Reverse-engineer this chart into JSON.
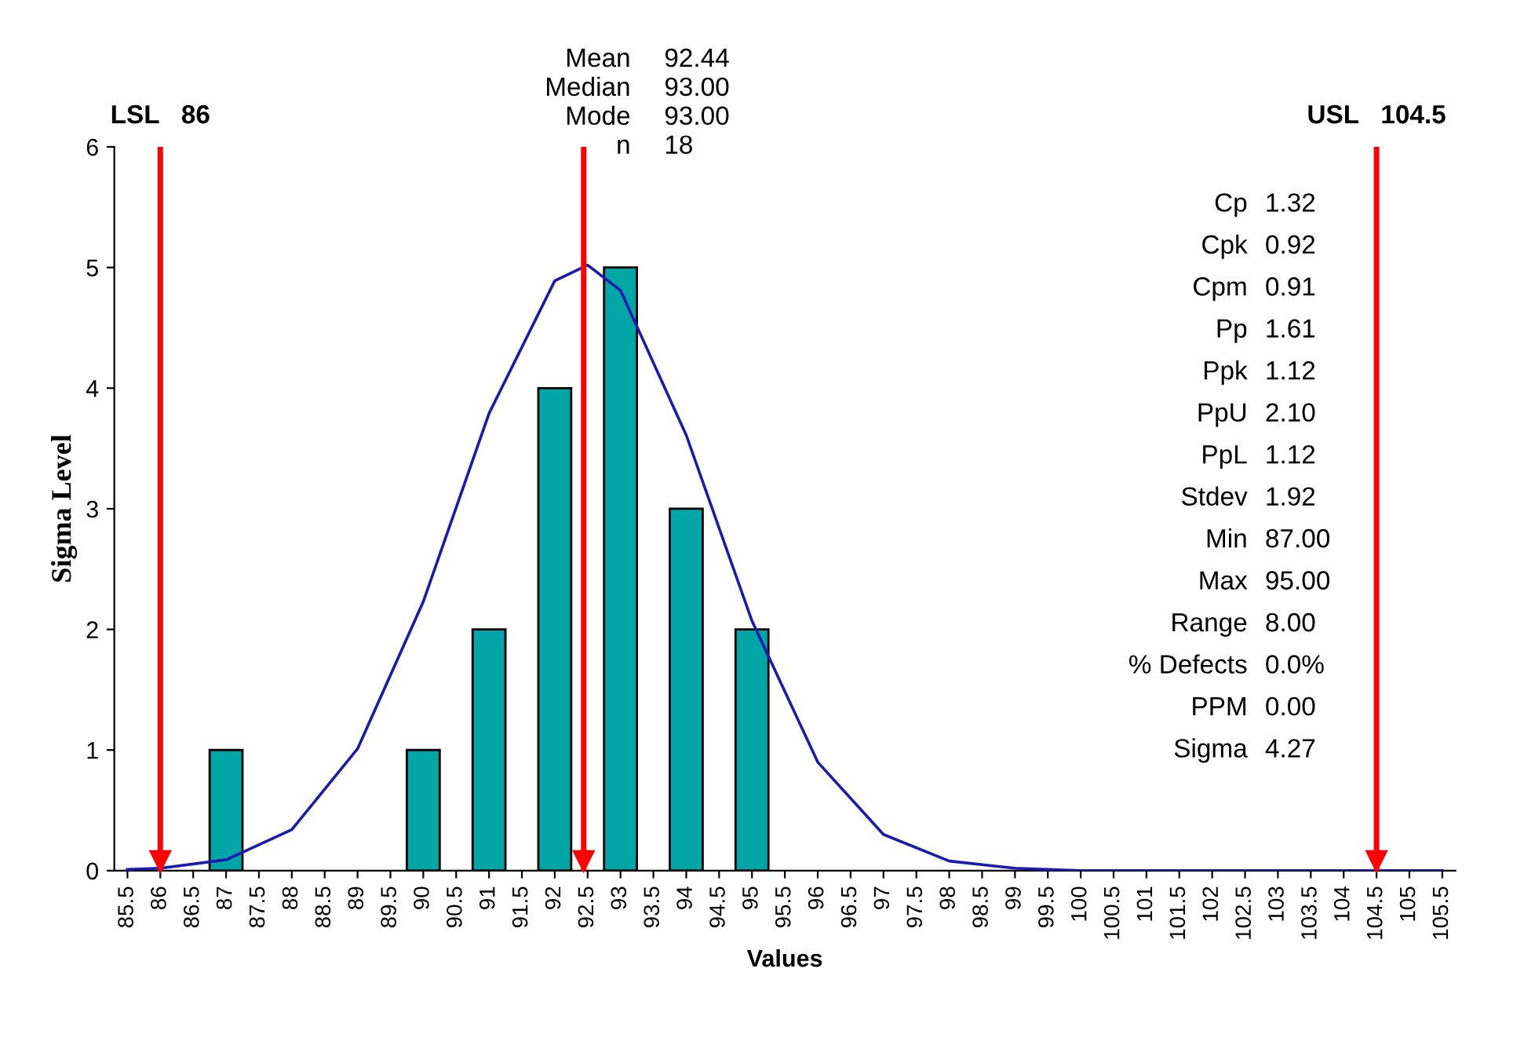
{
  "chart_data": {
    "type": "bar",
    "xlabel": "Values",
    "ylabel": "Sigma Level",
    "series": [
      {
        "x": [
          87,
          90,
          91,
          92,
          93,
          94,
          95
        ],
        "values": [
          1,
          1,
          2,
          4,
          5,
          3,
          2
        ],
        "color": "#00a6a6"
      },
      {
        "type": "line",
        "x": [
          85.5,
          86,
          87,
          88,
          89,
          90,
          91,
          92,
          92.5,
          93,
          94,
          95,
          96,
          97,
          98,
          99,
          100,
          101,
          105.5
        ],
        "values": [
          0.01,
          0.02,
          0.09,
          0.34,
          1.01,
          2.23,
          3.79,
          4.89,
          5.02,
          4.81,
          3.61,
          2.07,
          0.9,
          0.3,
          0.08,
          0.02,
          0,
          0,
          0
        ],
        "color": "#1a1ab0"
      }
    ],
    "xlim": [
      85.3,
      105.7
    ],
    "xticks": [
      85.5,
      86,
      86.5,
      87,
      87.5,
      88,
      88.5,
      89,
      89.5,
      90,
      90.5,
      91,
      91.5,
      92,
      92.5,
      93,
      93.5,
      94,
      94.5,
      95,
      95.5,
      96,
      96.5,
      97,
      97.5,
      98,
      98.5,
      99,
      99.5,
      100,
      100.5,
      101,
      101.5,
      102,
      102.5,
      103,
      103.5,
      104,
      104.5,
      105,
      105.5
    ],
    "ylim": [
      0,
      6
    ],
    "yticks": [
      0,
      1,
      2,
      3,
      4,
      5,
      6
    ],
    "ref_lines": [
      {
        "axis": "x",
        "value": 86,
        "label": "LSL   86",
        "color": "#ff0000"
      },
      {
        "axis": "x",
        "value": 92.44,
        "label": null,
        "color": "#ff0000"
      },
      {
        "axis": "x",
        "value": 104.5,
        "label": "USL   104.5",
        "color": "#ff0000"
      }
    ],
    "annotations": [
      "Mean 92.44",
      "Median 93.00",
      "Mode 93.00",
      "n 18",
      "Cp 1.32",
      "Cpk 0.92",
      "Cpm 0.91",
      "Pp 1.61",
      "Ppk 1.12",
      "PpU 2.10",
      "PpL 1.12",
      "Stdev 1.92",
      "Min 87.00",
      "Max 95.00",
      "Range 8.00",
      "% Defects 0.0%",
      "PPM 0.00",
      "Sigma 4.27"
    ]
  }
}
